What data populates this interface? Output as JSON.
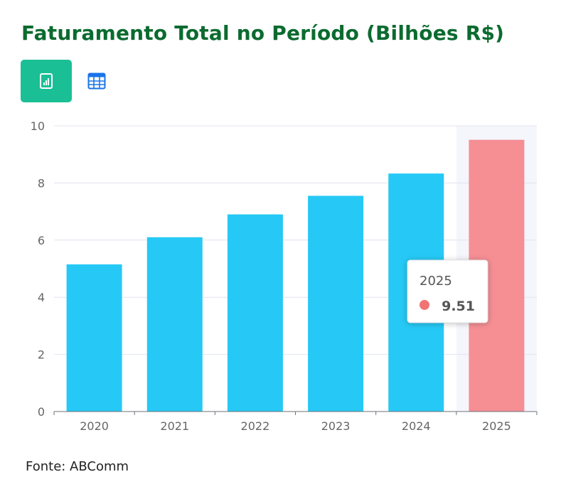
{
  "title": "Faturamento Total no Período (Bilhões R$)",
  "source": "Fonte: ABComm",
  "toolbar": {
    "chart_icon": "bar-chart-icon",
    "table_icon": "table-icon"
  },
  "colors": {
    "title": "#0b6b2f",
    "bar": "#26c9f5",
    "highlight_bar": "#f58f94",
    "active_button": "#1bbf95",
    "tooltip_dot": "#f07474"
  },
  "chart_data": {
    "type": "bar",
    "title": "Faturamento Total no Período (Bilhões R$)",
    "xlabel": "",
    "ylabel": "",
    "categories": [
      "2020",
      "2021",
      "2022",
      "2023",
      "2024",
      "2025"
    ],
    "values": [
      5.15,
      6.1,
      6.9,
      7.55,
      8.33,
      9.51
    ],
    "ylim": [
      0,
      10
    ],
    "yticks": [
      "0",
      "2",
      "4",
      "6",
      "8",
      "10"
    ],
    "grid": true,
    "highlighted_category": "2025"
  },
  "tooltip": {
    "year": "2025",
    "value": "9.51"
  }
}
